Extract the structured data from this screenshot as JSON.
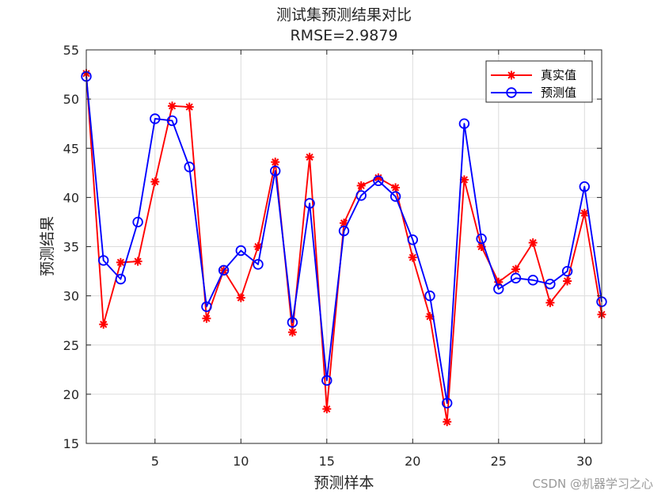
{
  "chart_data": {
    "type": "line",
    "title": "测试集预测结果对比",
    "subtitle": "RMSE=2.9879",
    "xlabel": "预测样本",
    "ylabel": "预测结果",
    "xlim": [
      1,
      31
    ],
    "ylim": [
      15,
      55
    ],
    "x_ticks": [
      5,
      10,
      15,
      20,
      25,
      30
    ],
    "y_ticks": [
      15,
      20,
      25,
      30,
      35,
      40,
      45,
      50,
      55
    ],
    "grid": true,
    "legend_position": "top-right",
    "x": [
      1,
      2,
      3,
      4,
      5,
      6,
      7,
      8,
      9,
      10,
      11,
      12,
      13,
      14,
      15,
      16,
      17,
      18,
      19,
      20,
      21,
      22,
      23,
      24,
      25,
      26,
      27,
      28,
      29,
      30,
      31
    ],
    "series": [
      {
        "name": "真实值",
        "color": "#ff0000",
        "marker": "asterisk",
        "values": [
          52.6,
          27.1,
          33.4,
          33.5,
          41.6,
          49.3,
          49.2,
          27.7,
          32.6,
          29.8,
          35.0,
          43.6,
          26.3,
          44.1,
          18.5,
          37.4,
          41.2,
          42.0,
          41.0,
          33.9,
          27.9,
          17.2,
          41.8,
          35.0,
          31.4,
          32.7,
          35.4,
          29.3,
          31.5,
          38.4,
          28.1
        ]
      },
      {
        "name": "预测值",
        "color": "#0000ff",
        "marker": "circle",
        "values": [
          52.3,
          33.6,
          31.7,
          37.5,
          48.0,
          47.8,
          43.1,
          28.9,
          32.6,
          34.6,
          33.2,
          42.7,
          27.3,
          39.4,
          21.4,
          36.6,
          40.2,
          41.7,
          40.1,
          35.7,
          30.0,
          19.1,
          47.5,
          35.8,
          30.7,
          31.8,
          31.6,
          31.2,
          32.5,
          41.1,
          29.4
        ]
      }
    ]
  },
  "watermark": "CSDN @机器学习之心"
}
